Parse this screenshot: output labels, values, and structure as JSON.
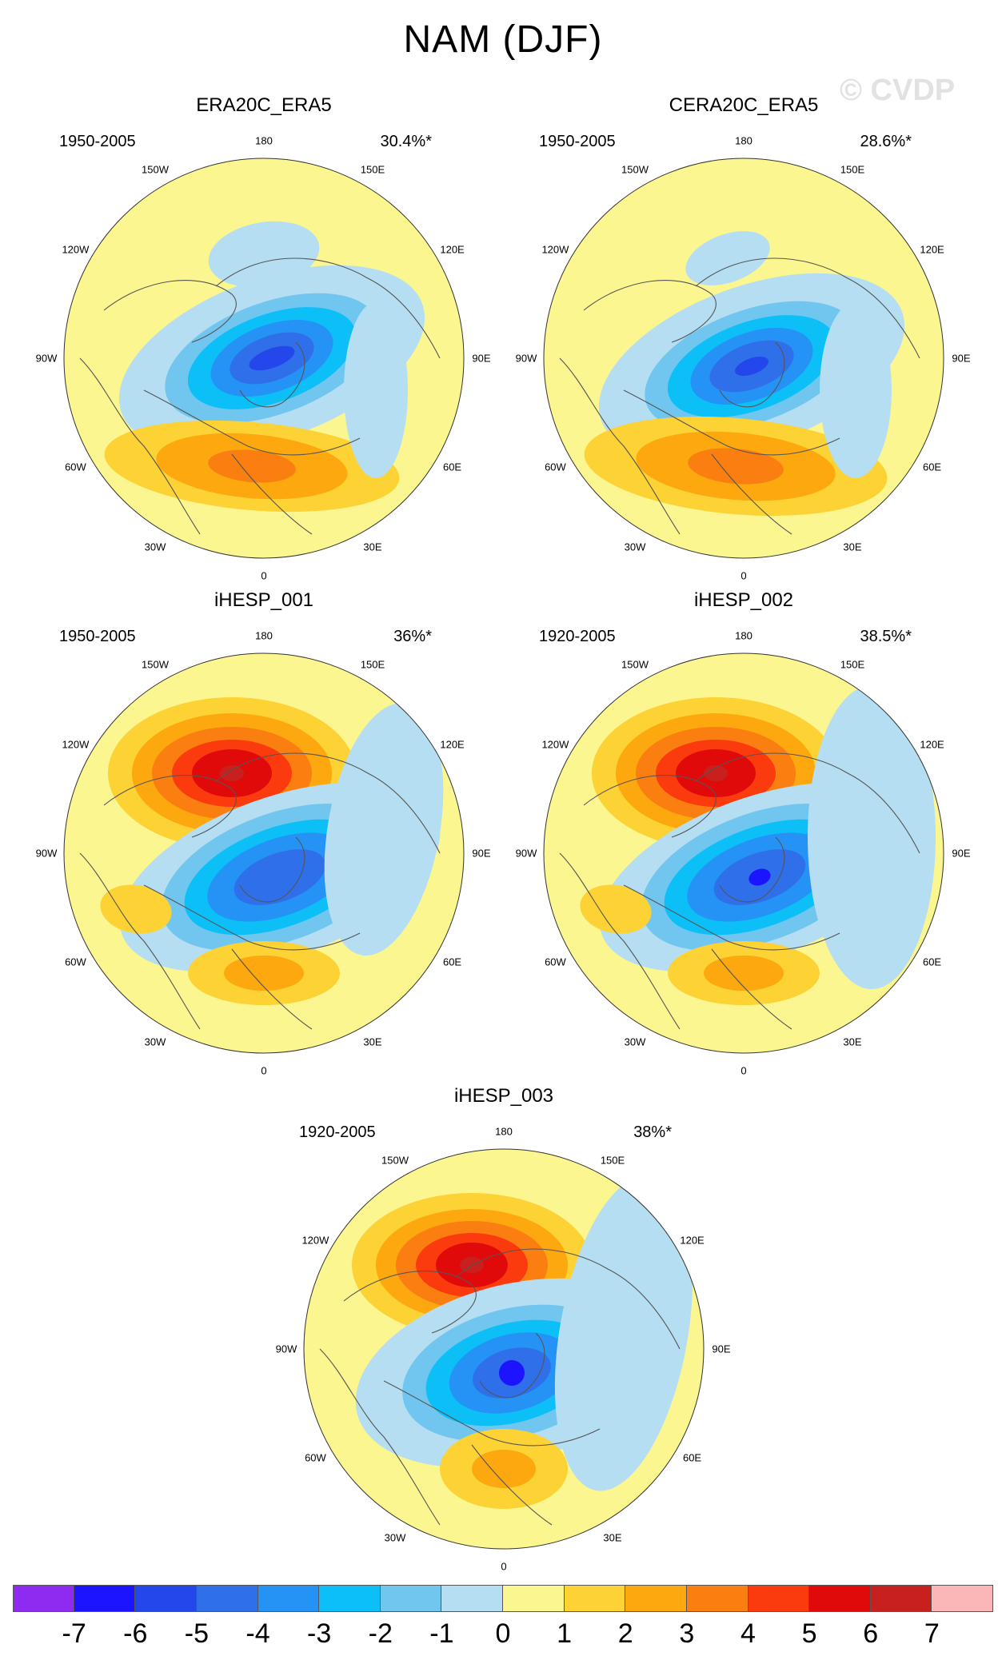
{
  "title": "NAM (DJF)",
  "watermark": "© CVDP",
  "lon_labels": [
    "180",
    "150E",
    "120E",
    "90E",
    "60E",
    "30E",
    "0",
    "30W",
    "60W",
    "90W",
    "120W",
    "150W"
  ],
  "palette": [
    "#8f2bf0",
    "#1c14ff",
    "#2447ec",
    "#2f6fea",
    "#2493f5",
    "#0cc0f7",
    "#70c6ef",
    "#b5def2",
    "#fcf690",
    "#fcd234",
    "#fca80e",
    "#fb7e10",
    "#fb3a0e",
    "#e10a0a",
    "#c8201f",
    "#fbb6b7"
  ],
  "colorbar": {
    "labels": [
      "-7",
      "-6",
      "-5",
      "-4",
      "-3",
      "-2",
      "-1",
      "0",
      "1",
      "2",
      "3",
      "4",
      "5",
      "6",
      "7"
    ]
  },
  "colors": {
    "land_outline": "#555555",
    "circle_outline": "#333333"
  },
  "panels": [
    {
      "name": "ERA20C_ERA5",
      "period": "1950-2005",
      "pct": "30.4%*"
    },
    {
      "name": "CERA20C_ERA5",
      "period": "1950-2005",
      "pct": "28.6%*"
    },
    {
      "name": "iHESP_001",
      "period": "1950-2005",
      "pct": "36%*"
    },
    {
      "name": "iHESP_002",
      "period": "1920-2005",
      "pct": "38.5%*"
    },
    {
      "name": "iHESP_003",
      "period": "1920-2005",
      "pct": "38%*"
    }
  ]
}
